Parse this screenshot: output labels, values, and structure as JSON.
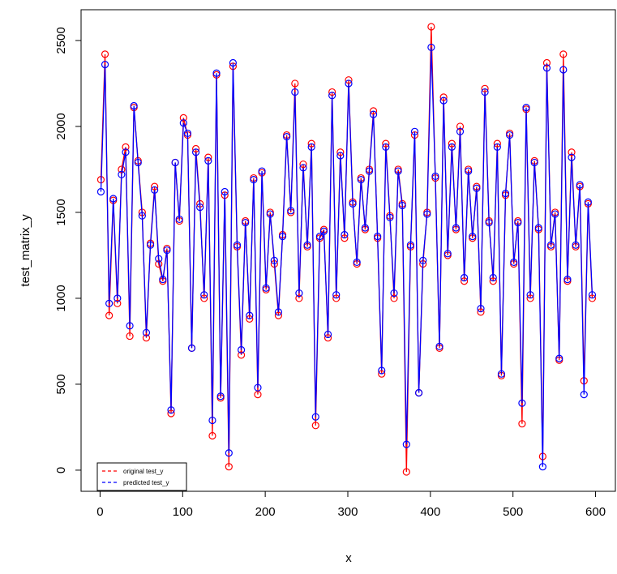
{
  "chart_data": {
    "type": "line",
    "xlabel": "x",
    "ylabel": "test_matrix_y",
    "x": [
      1,
      6,
      11,
      16,
      21,
      26,
      31,
      36,
      41,
      46,
      51,
      56,
      61,
      66,
      71,
      76,
      81,
      86,
      91,
      96,
      101,
      106,
      111,
      116,
      121,
      126,
      131,
      136,
      141,
      146,
      151,
      156,
      161,
      166,
      171,
      176,
      181,
      186,
      191,
      196,
      201,
      206,
      211,
      216,
      221,
      226,
      231,
      236,
      241,
      246,
      251,
      256,
      261,
      266,
      271,
      276,
      281,
      286,
      291,
      296,
      301,
      306,
      311,
      316,
      321,
      326,
      331,
      336,
      341,
      346,
      351,
      356,
      361,
      366,
      371,
      376,
      381,
      386,
      391,
      396,
      401,
      406,
      411,
      416,
      421,
      426,
      431,
      436,
      441,
      446,
      451,
      456,
      461,
      466,
      471,
      476,
      481,
      486,
      491,
      496,
      501,
      506,
      511,
      516,
      521,
      526,
      531,
      536,
      541,
      546,
      551,
      556,
      561,
      566,
      571,
      576,
      581,
      586,
      591,
      596
    ],
    "series": [
      {
        "name": "original test_y",
        "color": "#ff0000",
        "values": [
          1690,
          2420,
          900,
          1570,
          970,
          1750,
          1880,
          780,
          2110,
          1800,
          1500,
          770,
          1320,
          1650,
          1200,
          1100,
          1290,
          330,
          1790,
          1450,
          2050,
          1950,
          710,
          1870,
          1550,
          1000,
          1820,
          200,
          2300,
          420,
          1600,
          20,
          2350,
          1300,
          670,
          1450,
          880,
          1700,
          440,
          1730,
          1050,
          1500,
          1200,
          900,
          1370,
          1950,
          1500,
          2250,
          1000,
          1780,
          1300,
          1900,
          260,
          1350,
          1400,
          770,
          2200,
          1000,
          1850,
          1350,
          2270,
          1560,
          1200,
          1700,
          1400,
          1750,
          2090,
          1350,
          560,
          1900,
          1480,
          1000,
          1750,
          1550,
          -10,
          1300,
          1950,
          450,
          1200,
          1500,
          2580,
          1700,
          710,
          2170,
          1250,
          1900,
          1400,
          2000,
          1100,
          1750,
          1350,
          1650,
          920,
          2220,
          1450,
          1100,
          1900,
          550,
          1600,
          1960,
          1200,
          1450,
          270,
          2100,
          1000,
          1800,
          1400,
          80,
          2370,
          1300,
          1500,
          640,
          2420,
          1100,
          1850,
          1300,
          1650,
          520,
          1550,
          1000
        ]
      },
      {
        "name": "predicted test_y",
        "color": "#0000ff",
        "values": [
          1620,
          2360,
          970,
          1580,
          1000,
          1720,
          1850,
          840,
          2120,
          1790,
          1480,
          800,
          1310,
          1630,
          1230,
          1110,
          1280,
          350,
          1790,
          1460,
          2020,
          1960,
          710,
          1850,
          1530,
          1020,
          1800,
          290,
          2310,
          430,
          1620,
          100,
          2370,
          1310,
          700,
          1440,
          900,
          1690,
          480,
          1740,
          1060,
          1490,
          1220,
          920,
          1360,
          1940,
          1510,
          2200,
          1030,
          1760,
          1310,
          1880,
          310,
          1360,
          1390,
          790,
          2180,
          1020,
          1830,
          1370,
          2250,
          1550,
          1210,
          1690,
          1410,
          1740,
          2070,
          1360,
          580,
          1880,
          1470,
          1030,
          1740,
          1540,
          150,
          1310,
          1970,
          450,
          1220,
          1490,
          2460,
          1710,
          720,
          2150,
          1260,
          1880,
          1410,
          1970,
          1120,
          1740,
          1360,
          1640,
          940,
          2200,
          1440,
          1120,
          1880,
          560,
          1610,
          1950,
          1210,
          1440,
          390,
          2110,
          1020,
          1790,
          1410,
          20,
          2340,
          1310,
          1490,
          650,
          2330,
          1110,
          1820,
          1310,
          1660,
          440,
          1560,
          1020
        ]
      }
    ],
    "xlim": [
      -23,
      624
    ],
    "ylim": [
      -123,
      2679
    ],
    "xticks": [
      0,
      100,
      200,
      300,
      400,
      500,
      600
    ],
    "yticks": [
      0,
      500,
      1000,
      1500,
      2000,
      2500
    ],
    "legend": "bottom-left"
  }
}
